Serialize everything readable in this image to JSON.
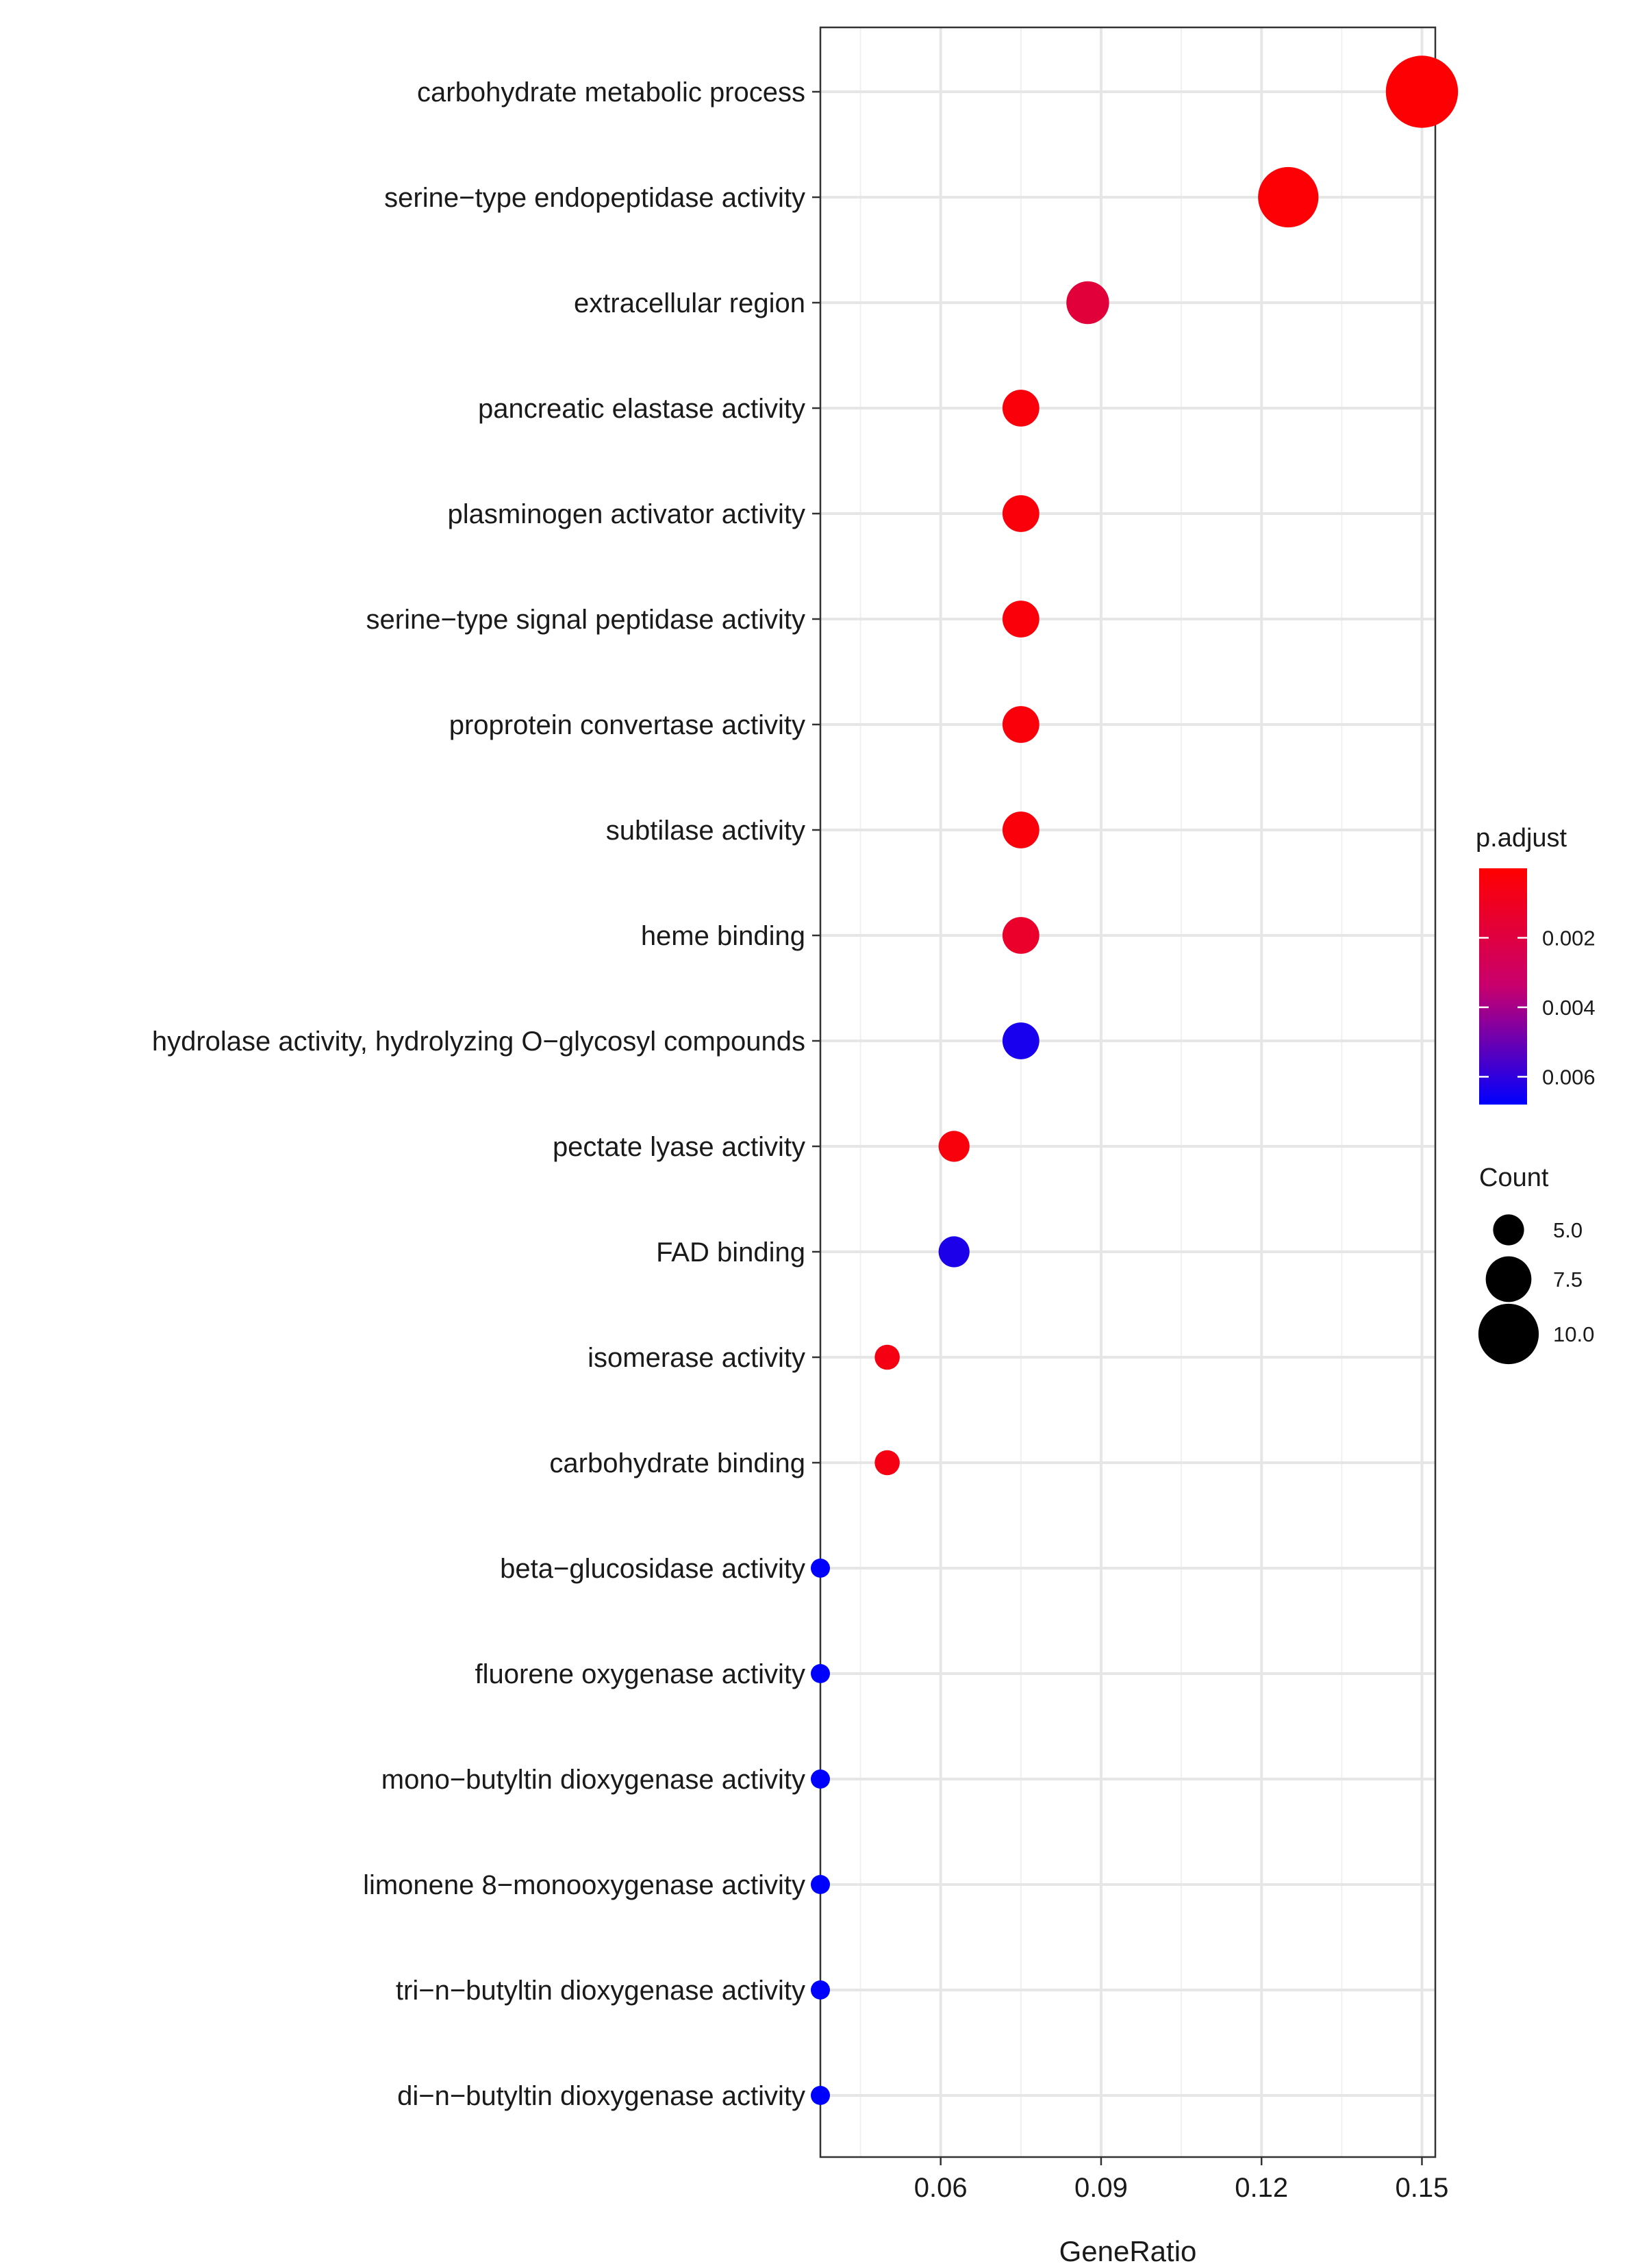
{
  "chart_data": {
    "type": "scatter",
    "title": "",
    "xlabel": "GeneRatio",
    "ylabel": "",
    "xlim": [
      0.0375,
      0.1525
    ],
    "x_ticks": [
      0.06,
      0.09,
      0.12,
      0.15
    ],
    "x_tick_labels": [
      "0.06",
      "0.09",
      "0.12",
      "0.15"
    ],
    "grid": true,
    "categories": [
      "carbohydrate metabolic process",
      "serine−type endopeptidase activity",
      "extracellular region",
      "pancreatic elastase activity",
      "plasminogen activator activity",
      "serine−type signal peptidase activity",
      "proprotein convertase activity",
      "subtilase activity",
      "heme binding",
      "hydrolase activity, hydrolyzing O−glycosyl compounds",
      "pectate lyase activity",
      "FAD binding",
      "isomerase activity",
      "carbohydrate binding",
      "beta−glucosidase activity",
      "fluorene oxygenase activity",
      "mono−butyltin dioxygenase activity",
      "limonene 8−monooxygenase activity",
      "tri−n−butyltin dioxygenase activity",
      "di−n−butyltin dioxygenase activity"
    ],
    "gene_ratio": [
      0.15,
      0.125,
      0.0875,
      0.075,
      0.075,
      0.075,
      0.075,
      0.075,
      0.075,
      0.075,
      0.0625,
      0.0625,
      0.05,
      0.05,
      0.0375,
      0.0375,
      0.0375,
      0.0375,
      0.0375,
      0.0375
    ],
    "count": [
      12,
      10,
      7,
      6,
      6,
      6,
      6,
      6,
      6,
      6,
      5,
      5,
      4,
      4,
      3,
      3,
      3,
      3,
      3,
      3
    ],
    "p_adjust": [
      0.0001,
      0.0002,
      0.0018,
      0.0003,
      0.0003,
      0.0003,
      0.0003,
      0.0003,
      0.0013,
      0.0064,
      0.0004,
      0.0063,
      0.0006,
      0.0006,
      0.0068,
      0.0068,
      0.0068,
      0.0068,
      0.0068,
      0.0068
    ],
    "color_legend": {
      "title": "p.adjust",
      "range": [
        0.0,
        0.0068
      ],
      "ticks": [
        0.002,
        0.004,
        0.006
      ],
      "tick_labels": [
        "0.002",
        "0.004",
        "0.006"
      ],
      "low_color": "#ff0000",
      "high_color": "#0000ff",
      "placement": "right"
    },
    "size_legend": {
      "title": "Count",
      "values": [
        5.0,
        7.5,
        10.0
      ],
      "labels": [
        "5.0",
        "7.5",
        "10.0"
      ],
      "placement": "right"
    }
  }
}
